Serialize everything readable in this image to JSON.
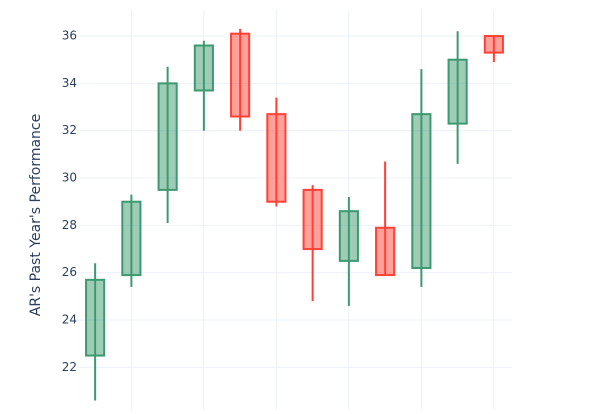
{
  "chart_data": {
    "type": "candlestick",
    "y_label": "AR's Past Year's Performance",
    "categories": [
      null,
      null,
      null,
      null,
      null,
      null,
      null,
      null,
      null,
      null,
      null,
      null
    ],
    "open": [
      22.5,
      25.9,
      29.5,
      33.7,
      36.1,
      32.7,
      29.5,
      26.5,
      27.9,
      26.2,
      32.3,
      36.0
    ],
    "high": [
      26.4,
      29.3,
      34.7,
      35.8,
      36.3,
      33.4,
      29.7,
      29.2,
      30.7,
      34.6,
      36.2,
      36.0
    ],
    "low": [
      20.6,
      25.4,
      28.1,
      32.0,
      32.0,
      28.8,
      24.8,
      24.6,
      25.9,
      25.4,
      30.6,
      34.9
    ],
    "close": [
      25.7,
      29.0,
      34.0,
      35.6,
      32.6,
      29.0,
      27.0,
      28.6,
      25.9,
      32.7,
      35.0,
      35.3
    ],
    "increasing_color": "#3d9970",
    "decreasing_color": "#ff4136",
    "ylim": [
      20.2,
      37.1
    ],
    "yticks": [
      22,
      24,
      26,
      28,
      30,
      32,
      34,
      36
    ],
    "grid": true
  }
}
